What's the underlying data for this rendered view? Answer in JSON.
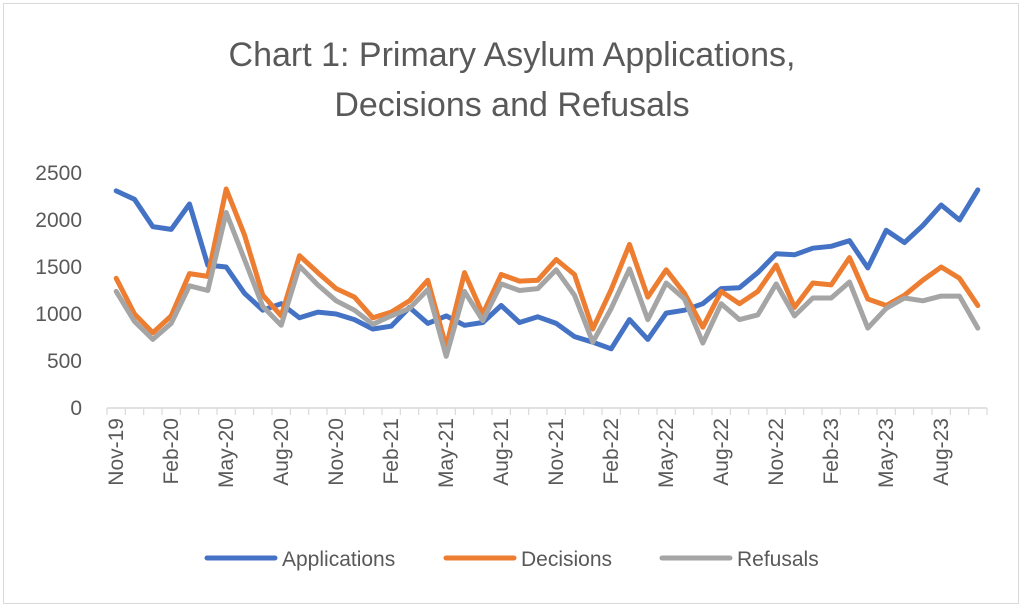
{
  "chart_data": {
    "type": "line",
    "title_lines": [
      "Chart 1: Primary Asylum Applications,",
      "Decisions and Refusals"
    ],
    "xlabel": "",
    "ylabel": "",
    "ylim": [
      0,
      2500
    ],
    "yticks": [
      0,
      500,
      1000,
      1500,
      2000,
      2500
    ],
    "xtick_labels": [
      "Nov-19",
      "Feb-20",
      "May-20",
      "Aug-20",
      "Nov-20",
      "Feb-21",
      "May-21",
      "Aug-21",
      "Nov-21",
      "Feb-22",
      "May-22",
      "Aug-22",
      "Nov-22",
      "Feb-23",
      "May-23",
      "Aug-23"
    ],
    "x": [
      "Nov-19",
      "Dec-19",
      "Jan-20",
      "Feb-20",
      "Mar-20",
      "Apr-20",
      "May-20",
      "Jun-20",
      "Jul-20",
      "Aug-20",
      "Sep-20",
      "Oct-20",
      "Nov-20",
      "Dec-20",
      "Jan-21",
      "Feb-21",
      "Mar-21",
      "Apr-21",
      "May-21",
      "Jun-21",
      "Jul-21",
      "Aug-21",
      "Sep-21",
      "Oct-21",
      "Nov-21",
      "Dec-21",
      "Jan-22",
      "Feb-22",
      "Mar-22",
      "Apr-22",
      "May-22",
      "Jun-22",
      "Jul-22",
      "Aug-22",
      "Sep-22",
      "Oct-22",
      "Nov-22",
      "Dec-22",
      "Jan-23",
      "Feb-23",
      "Mar-23",
      "Apr-23",
      "May-23",
      "Jun-23",
      "Jul-23",
      "Aug-23",
      "Sep-23",
      "Oct-23"
    ],
    "grid": false,
    "legend_position": "bottom",
    "series": [
      {
        "name": "Applications",
        "color": "#4472c4",
        "values": [
          2310,
          2220,
          1930,
          1900,
          2170,
          1520,
          1500,
          1220,
          1040,
          1110,
          960,
          1020,
          1000,
          940,
          840,
          870,
          1070,
          900,
          980,
          880,
          910,
          1090,
          910,
          970,
          900,
          760,
          700,
          630,
          940,
          730,
          1010,
          1040,
          1110,
          1270,
          1280,
          1440,
          1640,
          1630,
          1700,
          1720,
          1780,
          1490,
          1890,
          1760,
          1940,
          2160,
          2000,
          2320
        ]
      },
      {
        "name": "Decisions",
        "color": "#ed7d31",
        "values": [
          1380,
          1000,
          800,
          980,
          1430,
          1400,
          2330,
          1840,
          1200,
          980,
          1620,
          1440,
          1270,
          1180,
          960,
          1020,
          1140,
          1360,
          650,
          1440,
          1000,
          1420,
          1350,
          1360,
          1580,
          1420,
          840,
          1260,
          1740,
          1180,
          1470,
          1220,
          860,
          1240,
          1110,
          1240,
          1520,
          1070,
          1330,
          1310,
          1600,
          1160,
          1090,
          1200,
          1360,
          1500,
          1380,
          1090
        ]
      },
      {
        "name": "Refusals",
        "color": "#a5a5a5",
        "values": [
          1240,
          920,
          730,
          900,
          1300,
          1250,
          2080,
          1580,
          1080,
          880,
          1510,
          1310,
          1140,
          1040,
          890,
          980,
          1060,
          1260,
          550,
          1240,
          930,
          1320,
          1250,
          1270,
          1470,
          1200,
          700,
          1060,
          1480,
          940,
          1330,
          1160,
          690,
          1110,
          940,
          990,
          1320,
          980,
          1170,
          1170,
          1340,
          850,
          1060,
          1170,
          1140,
          1190,
          1190,
          850
        ]
      }
    ]
  }
}
